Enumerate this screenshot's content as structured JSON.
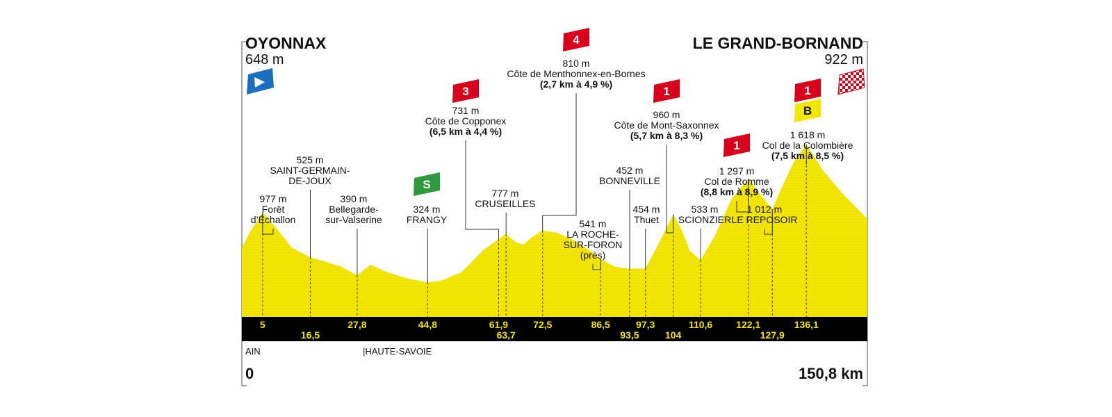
{
  "header": {
    "start_city": "OYONNAX",
    "start_alt": "648 m",
    "finish_city": "LE GRAND-BORNAND",
    "finish_alt": "922 m"
  },
  "distance": {
    "start": "0",
    "end": "150,8 km"
  },
  "regions": {
    "left": "AIN",
    "right": "|HAUTE-SAVOIE"
  },
  "km_markers": [
    {
      "km": 5,
      "label": "5",
      "row": 1
    },
    {
      "km": 16.5,
      "label": "16,5",
      "row": 2
    },
    {
      "km": 27.8,
      "label": "27,8",
      "row": 1
    },
    {
      "km": 44.8,
      "label": "44,8",
      "row": 1
    },
    {
      "km": 61.9,
      "label": "61,9",
      "row": 1
    },
    {
      "km": 63.7,
      "label": "63,7",
      "row": 2
    },
    {
      "km": 72.5,
      "label": "72,5",
      "row": 1
    },
    {
      "km": 86.5,
      "label": "86,5",
      "row": 1
    },
    {
      "km": 93.5,
      "label": "93,5",
      "row": 2
    },
    {
      "km": 97.3,
      "label": "97,3",
      "row": 1
    },
    {
      "km": 104,
      "label": "104",
      "row": 2
    },
    {
      "km": 110.6,
      "label": "110,6",
      "row": 1
    },
    {
      "km": 122.1,
      "label": "122,1",
      "row": 1
    },
    {
      "km": 127.9,
      "label": "127,9",
      "row": 2
    },
    {
      "km": 136.1,
      "label": "136,1",
      "row": 1
    }
  ],
  "waypoints": [
    {
      "name": "foret-dechallon",
      "km": 5,
      "lines": [
        "977 m",
        "Forêt",
        "d’Échallon"
      ]
    },
    {
      "name": "saint-germain-de-joux",
      "km": 16.5,
      "lines": [
        "525 m",
        "SAINT-GERMAIN-",
        "DE-JOUX"
      ]
    },
    {
      "name": "bellegarde-sur-valserine",
      "km": 27.8,
      "lines": [
        "390 m",
        "Bellegarde-",
        "sur-Valserine"
      ]
    },
    {
      "name": "frangy",
      "km": 44.8,
      "lines": [
        "324 m",
        "FRANGY"
      ]
    },
    {
      "name": "cruseilles",
      "km": 63.7,
      "lines": [
        "777 m",
        "CRUSEILLES"
      ]
    },
    {
      "name": "la-roche-sur-foron",
      "km": 86.5,
      "lines": [
        "541 m",
        "LA ROCHE-",
        "SUR-FORON",
        "(près)"
      ]
    },
    {
      "name": "bonneville",
      "km": 93.5,
      "lines": [
        "452 m",
        "BONNEVILLE"
      ]
    },
    {
      "name": "thuet",
      "km": 97.3,
      "lines": [
        "454 m",
        "Thuet"
      ]
    },
    {
      "name": "scionzier",
      "km": 110.6,
      "lines": [
        "533 m",
        "SCIONZIER"
      ]
    },
    {
      "name": "le-reposoir",
      "km": 127.9,
      "lines": [
        "1 012 m",
        "LE REPOSOIR"
      ]
    }
  ],
  "climbs": [
    {
      "name": "cote-de-copponex",
      "km": 61.9,
      "category": "3",
      "alt": "731 m",
      "title": "Côte de Copponex",
      "detail": "(6,5 km à 4,4 %)"
    },
    {
      "name": "cote-de-menthonnex",
      "km": 72.5,
      "category": "4",
      "alt": "810 m",
      "title": "Côte de Menthonnex-en-Bornes",
      "detail": "(2,7 km à 4,9 %)"
    },
    {
      "name": "cote-de-mont-saxonnex",
      "km": 104,
      "category": "1",
      "alt": "960 m",
      "title": "Côte de Mont-Saxonnex",
      "detail": "(5,7 km à 8,3 %)"
    },
    {
      "name": "col-de-romme",
      "km": 122.1,
      "category": "1",
      "alt": "1 297 m",
      "title": "Col de Romme",
      "detail": "(8,8 km à 8,9 %)"
    },
    {
      "name": "col-de-la-colombiere",
      "km": 136.1,
      "category": "1",
      "alt": "1 618 m",
      "title": "Col de la Colombière",
      "detail": "(7,5 km à 8,5 %)"
    }
  ],
  "sprint": {
    "km": 44.8,
    "label": "S"
  },
  "bonus": {
    "label": "B"
  },
  "colors": {
    "profile": "#f3e600",
    "band": "#000000",
    "km_text": "#f3e600",
    "climb_badge": "#d9001b",
    "sprint_badge": "#2e9a3b",
    "bonus_badge": "#f3e600",
    "start_flag": "#1a6fbf"
  },
  "chart_data": {
    "type": "area",
    "x": [
      0,
      2,
      5,
      8,
      12,
      16.5,
      20,
      24,
      27.8,
      31,
      35,
      40,
      44.8,
      48,
      53,
      58,
      61.9,
      63.7,
      66,
      68,
      70,
      72.5,
      76,
      80,
      84,
      86.5,
      90,
      93.5,
      97.3,
      100,
      104,
      106,
      108,
      110.6,
      114,
      118,
      122.1,
      124,
      126,
      127.9,
      130,
      133,
      136.1,
      140,
      145,
      150.8
    ],
    "y": [
      648,
      800,
      977,
      850,
      650,
      560,
      520,
      470,
      390,
      490,
      420,
      360,
      324,
      340,
      420,
      620,
      731,
      777,
      700,
      680,
      750,
      810,
      790,
      720,
      620,
      541,
      470,
      452,
      454,
      650,
      960,
      820,
      620,
      533,
      760,
      1100,
      1297,
      1200,
      1100,
      1012,
      1200,
      1450,
      1618,
      1380,
      1150,
      922
    ],
    "xlabel": "",
    "ylabel": "",
    "xlim": [
      0,
      150.8
    ],
    "ylim": [
      0,
      1800
    ]
  }
}
